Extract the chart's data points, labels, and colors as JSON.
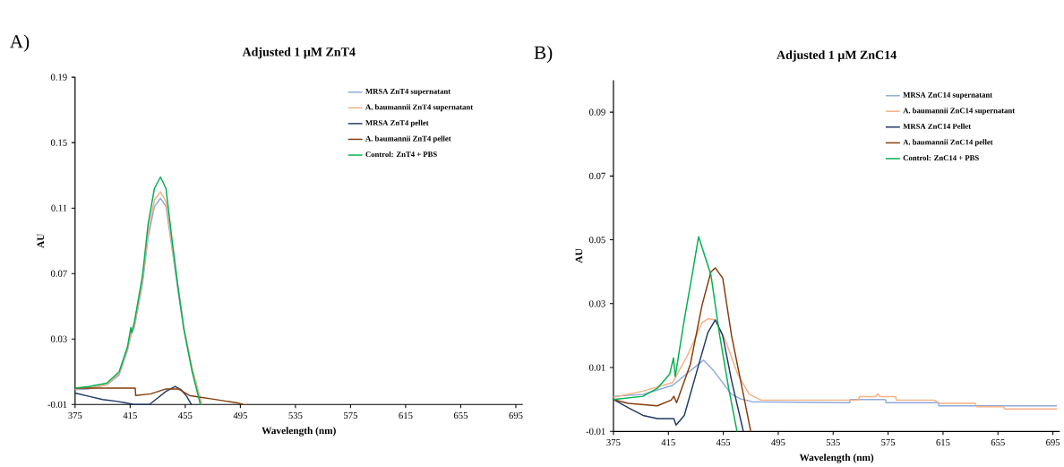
{
  "chart_data": [
    {
      "type": "line",
      "title": "Adjusted 1 µM ZnT4",
      "xlabel": "Wavelength (nm)",
      "ylabel": "AU",
      "annotations": [
        "A)"
      ],
      "legend": "top right",
      "xlim": [
        375,
        700
      ],
      "ylim": [
        -0.01,
        0.19
      ],
      "xticks": [
        375,
        415,
        455,
        495,
        535,
        575,
        615,
        655,
        695
      ],
      "yticks": [
        -0.01,
        0.03,
        0.07,
        0.11,
        0.15,
        0.19
      ],
      "series": [
        {
          "name": "MRSA ZnT4 supernatant",
          "color": "#8faadc",
          "x": [
            375,
            385,
            398,
            407,
            413,
            415.5,
            418,
            424,
            428,
            432.6,
            437,
            441,
            445.5,
            450,
            454,
            460,
            467
          ],
          "values": [
            -0.001,
            -0.0005,
            0.002,
            0.008,
            0.023,
            0.032,
            0.037,
            0.064,
            0.092,
            0.111,
            0.116,
            0.111,
            0.085,
            0.058,
            0.036,
            0.012,
            -0.01
          ]
        },
        {
          "name": "A. baumannii ZnT4 supernatant",
          "color": "#f4b183",
          "x": [
            375,
            385,
            398,
            407,
            413,
            415.5,
            418,
            424,
            428,
            432.6,
            437,
            441,
            445.5,
            450,
            454,
            460,
            467
          ],
          "values": [
            -0.0005,
            0.0,
            0.002,
            0.009,
            0.024,
            0.033,
            0.038,
            0.066,
            0.095,
            0.115,
            0.12,
            0.114,
            0.087,
            null,
            0.037,
            0.012,
            -0.01
          ]
        },
        {
          "name": "MRSA ZnT4 pellet",
          "color": "#203864",
          "x": [
            375,
            385,
            395,
            405,
            412,
            417.6,
            429,
            435,
            441,
            447.7,
            452,
            456,
            459.5
          ],
          "values": [
            -0.003,
            -0.005,
            -0.007,
            -0.008,
            -0.009,
            -0.01,
            -0.01,
            -0.006,
            -0.002,
            0.001,
            -0.001,
            -0.005,
            -0.01
          ]
        },
        {
          "name": "A. baumannii ZnT4 pellet",
          "color": "#843c0c",
          "x": [
            375,
            418.7,
            419,
            430,
            441,
            450,
            458,
            465,
            473.5,
            485,
            493,
            497
          ],
          "values": [
            0.0,
            0.0,
            -0.0045,
            -0.0035,
            -0.0005,
            -0.0005,
            -0.0045,
            -0.0055,
            -0.0065,
            -0.008,
            -0.009,
            -0.01
          ]
        },
        {
          "name": "Control: ZnT4 + PBS",
          "color": "#00b050",
          "x": [
            375,
            385,
            398,
            407,
            413,
            415.5,
            416,
            418,
            424,
            428,
            432.6,
            437,
            441,
            445.5,
            450,
            454,
            460,
            466
          ],
          "values": [
            0.0,
            0.001,
            0.003,
            0.01,
            0.025,
            0.037,
            0.034,
            0.04,
            0.069,
            0.1,
            0.122,
            0.129,
            0.122,
            0.09,
            0.06,
            0.036,
            0.01,
            -0.01
          ]
        }
      ]
    },
    {
      "type": "line",
      "title": "Adjusted 1 µM ZnC14",
      "xlabel": "Wavelength (nm)",
      "ylabel": "AU",
      "annotations": [
        "B)"
      ],
      "legend": "top right",
      "xlim": [
        375,
        700
      ],
      "ylim": [
        -0.01,
        0.1
      ],
      "xticks": [
        375,
        415,
        455,
        495,
        535,
        575,
        615,
        655,
        695
      ],
      "yticks": [
        -0.01,
        0.01,
        0.03,
        0.05,
        0.07,
        0.09
      ],
      "series": [
        {
          "name": "MRSA ZnC14 supernatant",
          "color": "#8faadc",
          "x": [
            375,
            396.5,
            418,
            431,
            440.6,
            448,
            461,
            467.5,
            476,
            547,
            547.5,
            573,
            573.5,
            611.7,
            612,
            698
          ],
          "values": [
            0.001,
            0.0016,
            0.0044,
            0.009,
            0.0123,
            0.009,
            0.0016,
            0.0002,
            -0.0007,
            -0.001,
            0.0,
            0.0,
            -0.001,
            -0.001,
            -0.002,
            -0.002
          ]
        },
        {
          "name": "A. baumannii ZnC14 supernatant",
          "color": "#f4b183",
          "x": [
            375,
            396.5,
            418,
            428.8,
            439.5,
            443.8,
            449.2,
            456.7,
            465.3,
            473.9,
            482.5,
            553.6,
            554,
            566,
            567.6,
            569,
            580.5,
            581,
            608.4,
            612.7,
            638.5,
            639.6,
            659,
            660,
            698
          ],
          "values": [
            0.0007,
            0.0026,
            0.0053,
            0.0137,
            0.024,
            0.0253,
            0.0249,
            0.0184,
            0.0081,
            0.0016,
            -0.0002,
            -0.0002,
            0.0009,
            0.0009,
            0.0018,
            0.0009,
            0.0009,
            -0.0002,
            -0.0002,
            -0.0012,
            -0.0012,
            -0.0023,
            -0.0023,
            -0.003,
            -0.003
          ]
        },
        {
          "name": "MRSA ZnC14 Pellet",
          "color": "#203864",
          "x": [
            375,
            385.8,
            396.5,
            407,
            419,
            420.6,
            426.6,
            435.2,
            443.8,
            449.2,
            454.6,
            461,
            469.6
          ],
          "values": [
            0.0,
            -0.0026,
            -0.005,
            -0.006,
            -0.006,
            -0.008,
            -0.005,
            0.008,
            0.021,
            0.0249,
            0.02,
            0.006,
            -0.01
          ]
        },
        {
          "name": "A. baumannii ZnC14 pellet",
          "color": "#843c0c",
          "x": [
            375,
            385.8,
            407,
            417,
            419,
            421,
            431,
            439.5,
            446,
            449.2,
            454.6,
            461,
            469.6,
            475
          ],
          "values": [
            0.0,
            -0.0012,
            -0.002,
            -0.0002,
            0.001,
            -0.001,
            0.011,
            0.0295,
            0.04,
            0.0412,
            0.038,
            0.02,
            0.0016,
            -0.01
          ]
        },
        {
          "name": "Control: ZnC14 + PBS",
          "color": "#00b050",
          "x": [
            375,
            396.5,
            407,
            416,
            418.7,
            420,
            426.6,
            433,
            437,
            446,
            452.4,
            458.9,
            465
          ],
          "values": [
            0.0,
            0.001,
            0.0035,
            0.008,
            0.013,
            0.0072,
            0.025,
            0.0407,
            0.051,
            0.039,
            0.02,
            0.0035,
            -0.01
          ]
        }
      ]
    }
  ]
}
